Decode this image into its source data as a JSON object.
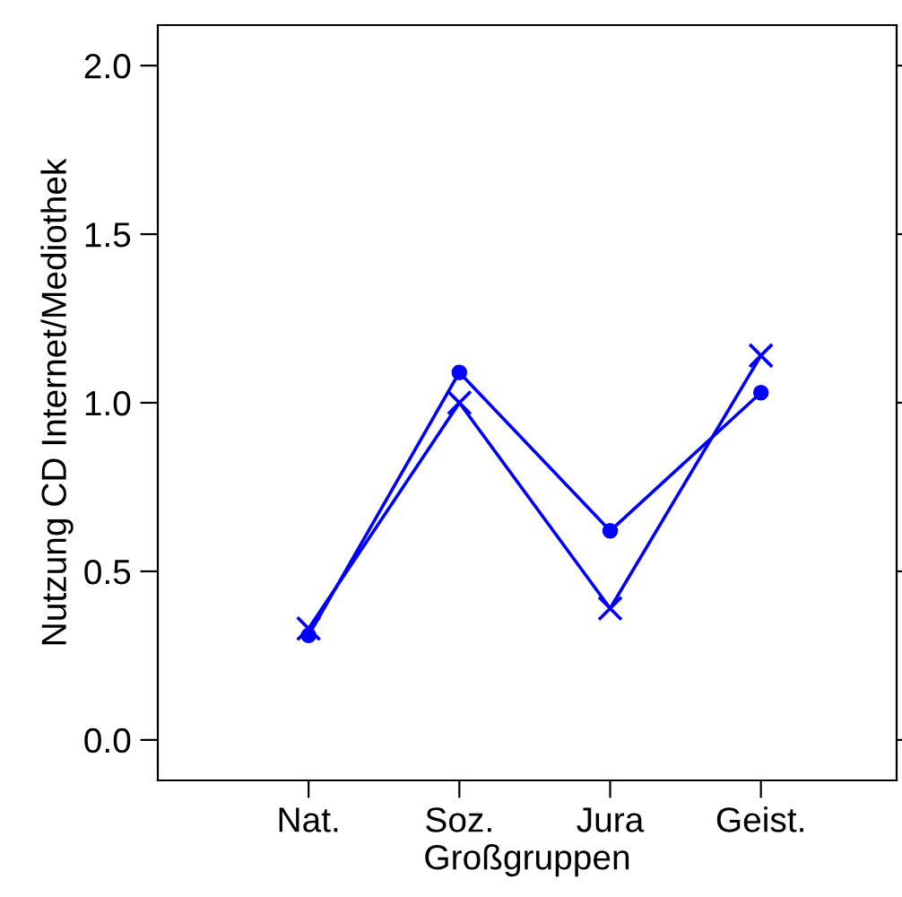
{
  "chart_data": {
    "type": "line",
    "xlabel": "Großgruppen",
    "ylabel": "Nutzung CD Internet/Mediothek",
    "categories": [
      "Nat.",
      "Soz.",
      "Jura",
      "Geist."
    ],
    "series": [
      {
        "color": "#0000ff",
        "marker": "circle",
        "values": [
          0.31,
          1.09,
          0.62,
          1.03
        ]
      },
      {
        "color": "#0000ff",
        "marker": "cross",
        "values": [
          0.33,
          1.0,
          0.39,
          1.14
        ]
      }
    ],
    "ylim": [
      -0.12,
      2.12
    ],
    "yticks": [
      {
        "value": 0,
        "label": "0.0"
      },
      {
        "value": 0.5,
        "label": "0.5"
      },
      {
        "value": 1,
        "label": "1.0"
      },
      {
        "value": 1.5,
        "label": "1.5"
      },
      {
        "value": 2,
        "label": "2.0"
      }
    ],
    "grid": false,
    "legend": false
  }
}
